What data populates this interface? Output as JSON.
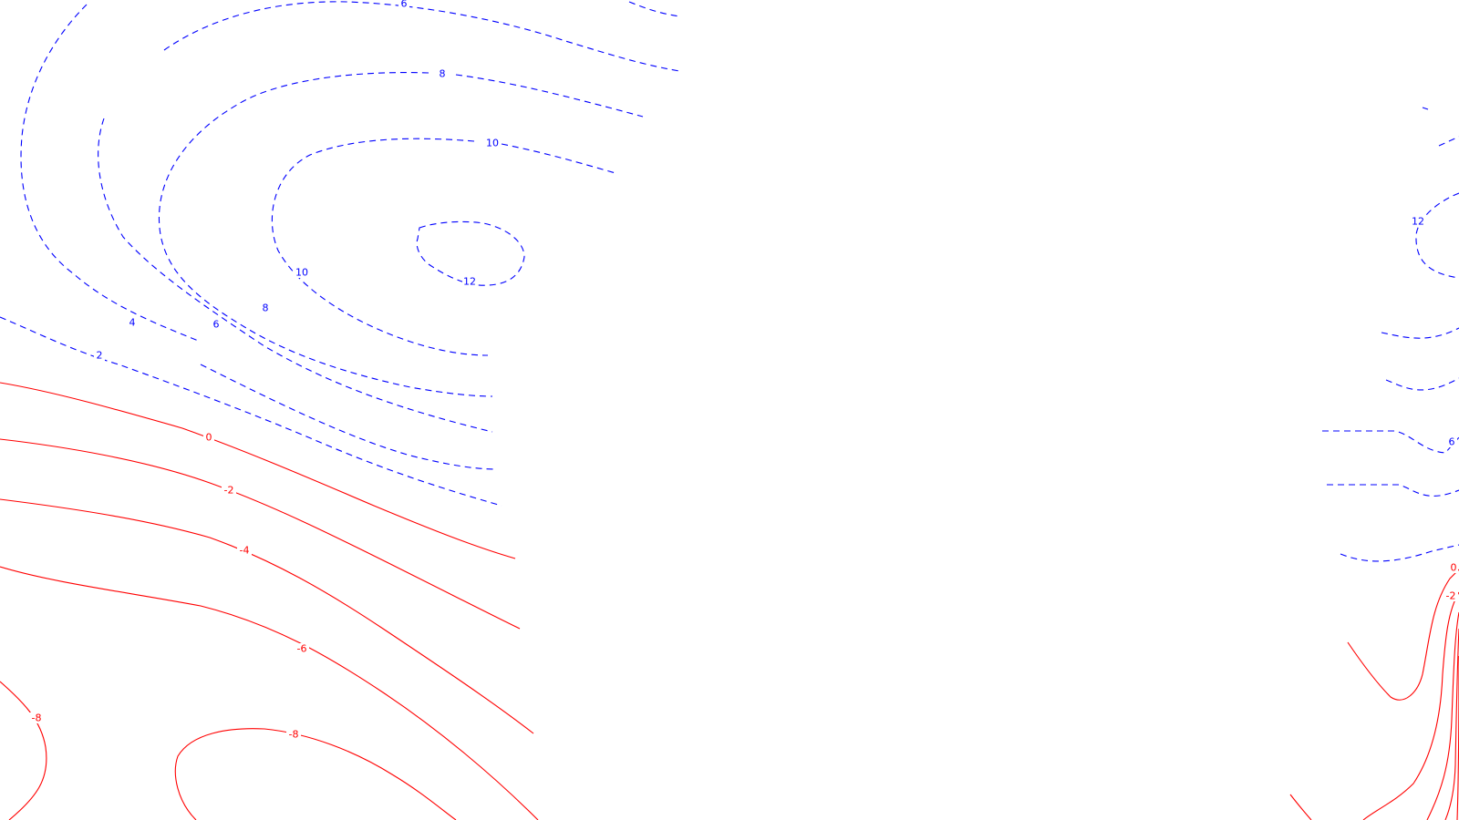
{
  "colors": {
    "positive": "#0000ff",
    "negative": "#ff0000",
    "background": "#ffffff"
  },
  "line_styles": {
    "positive": "dashed",
    "negative": "solid"
  },
  "labels": {
    "pos_6_top": "6",
    "pos_8_top": "8",
    "pos_10_top": "10",
    "pos_12_center": "12",
    "pos_10_left": "10",
    "pos_8_left": "8",
    "pos_6_left": "6",
    "pos_4_left": "4",
    "pos_2_left": "2",
    "neg_0": "0",
    "neg_2": "-2",
    "neg_4": "-4",
    "neg_6": "-6",
    "neg_8_left": "-8",
    "neg_8_bottom": "-8",
    "right_pos_12": "12",
    "right_pos_6": "6",
    "right_neg_0": "0",
    "right_neg_2": "-2"
  }
}
